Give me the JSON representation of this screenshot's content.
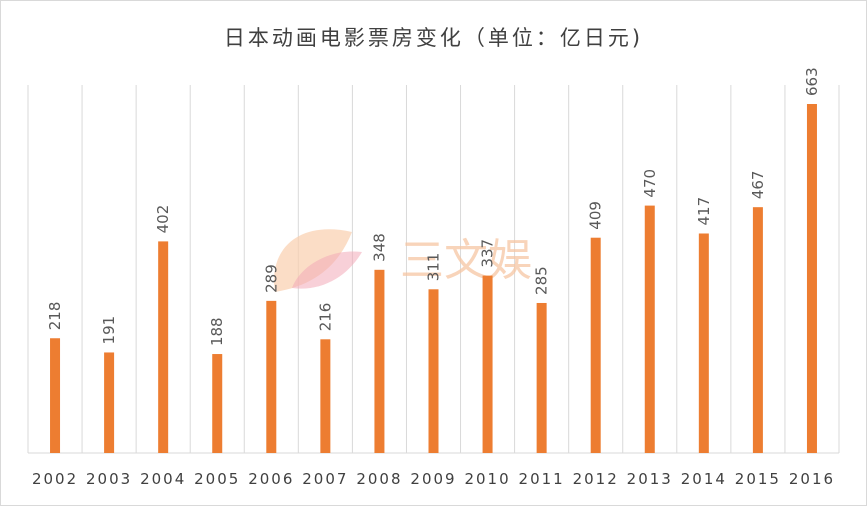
{
  "chart_data": {
    "type": "bar",
    "title": "日本动画电影票房变化（单位：亿日元)",
    "xlabel": "",
    "ylabel": "",
    "categories": [
      "2002",
      "2003",
      "2004",
      "2005",
      "2006",
      "2007",
      "2008",
      "2009",
      "2010",
      "2011",
      "2012",
      "2013",
      "2014",
      "2015",
      "2016"
    ],
    "values": [
      218,
      191,
      402,
      188,
      289,
      216,
      348,
      311,
      337,
      285,
      409,
      470,
      417,
      467,
      663
    ],
    "ylim": [
      0,
      700
    ],
    "grid": "vertical-gridlines",
    "legend": "none",
    "data_labels": "vertical-above-bars",
    "bar_color": "#ED7D31",
    "gridline_color": "#d9d9d9"
  },
  "watermark": {
    "text": "三文娱",
    "icon": "feather-logo-icon"
  }
}
